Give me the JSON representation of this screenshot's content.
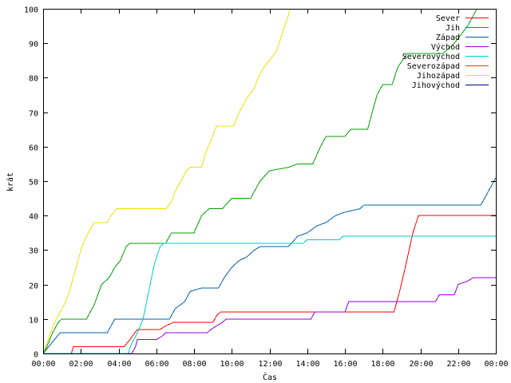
{
  "chart_data": {
    "type": "line",
    "title": "",
    "xlabel": "Čas",
    "ylabel": "krát",
    "xlim": [
      0,
      24
    ],
    "ylim": [
      0,
      100
    ],
    "grid": false,
    "legend_position": "top-right",
    "x_ticks": [
      {
        "value": 0,
        "label": "00:00"
      },
      {
        "value": 2,
        "label": "02:00"
      },
      {
        "value": 4,
        "label": "04:00"
      },
      {
        "value": 6,
        "label": "06:00"
      },
      {
        "value": 8,
        "label": "08:00"
      },
      {
        "value": 10,
        "label": "10:00"
      },
      {
        "value": 12,
        "label": "12:00"
      },
      {
        "value": 14,
        "label": "14:00"
      },
      {
        "value": 16,
        "label": "16:00"
      },
      {
        "value": 18,
        "label": "18:00"
      },
      {
        "value": 20,
        "label": "20:00"
      },
      {
        "value": 22,
        "label": "22:00"
      },
      {
        "value": 24,
        "label": "00:00"
      }
    ],
    "y_ticks": [
      {
        "value": 0,
        "label": "0"
      },
      {
        "value": 10,
        "label": "10"
      },
      {
        "value": 20,
        "label": "20"
      },
      {
        "value": 30,
        "label": "30"
      },
      {
        "value": 40,
        "label": "40"
      },
      {
        "value": 50,
        "label": "50"
      },
      {
        "value": 60,
        "label": "60"
      },
      {
        "value": 70,
        "label": "70"
      },
      {
        "value": 80,
        "label": "80"
      },
      {
        "value": 90,
        "label": "90"
      },
      {
        "value": 100,
        "label": "100"
      }
    ],
    "series": [
      {
        "name": "Sever",
        "color": "#ff0000",
        "points": [
          [
            0,
            0
          ],
          [
            1.5,
            0
          ],
          [
            1.6,
            2
          ],
          [
            4.3,
            2
          ],
          [
            4.6,
            4
          ],
          [
            5.0,
            7
          ],
          [
            6.2,
            7
          ],
          [
            6.5,
            8
          ],
          [
            6.9,
            9
          ],
          [
            9.0,
            9
          ],
          [
            9.2,
            11
          ],
          [
            9.4,
            12
          ],
          [
            18.6,
            12
          ],
          [
            18.9,
            18
          ],
          [
            19.2,
            25
          ],
          [
            19.6,
            35
          ],
          [
            19.9,
            40
          ],
          [
            24,
            40
          ]
        ]
      },
      {
        "name": "Jih",
        "color": "#00a000",
        "points": [
          [
            0,
            0
          ],
          [
            0.2,
            2
          ],
          [
            0.5,
            6
          ],
          [
            0.8,
            9
          ],
          [
            1.0,
            10
          ],
          [
            2.3,
            10
          ],
          [
            2.7,
            14
          ],
          [
            3.1,
            20
          ],
          [
            3.5,
            22
          ],
          [
            3.8,
            25
          ],
          [
            4.1,
            27
          ],
          [
            4.4,
            31
          ],
          [
            4.6,
            32
          ],
          [
            6.5,
            32
          ],
          [
            6.8,
            35
          ],
          [
            8.0,
            35
          ],
          [
            8.4,
            40
          ],
          [
            8.8,
            42
          ],
          [
            9.5,
            42
          ],
          [
            10.0,
            45
          ],
          [
            11.0,
            45
          ],
          [
            11.5,
            50
          ],
          [
            12.0,
            53
          ],
          [
            13.0,
            54
          ],
          [
            13.5,
            55
          ],
          [
            14.3,
            55
          ],
          [
            14.7,
            60
          ],
          [
            15.0,
            63
          ],
          [
            16.0,
            63
          ],
          [
            16.3,
            65
          ],
          [
            17.2,
            65
          ],
          [
            17.7,
            75
          ],
          [
            18.0,
            78
          ],
          [
            18.5,
            78
          ],
          [
            18.8,
            83
          ],
          [
            19.3,
            87
          ],
          [
            21.2,
            87
          ],
          [
            21.8,
            90
          ],
          [
            22.5,
            95
          ],
          [
            23.0,
            100
          ],
          [
            24,
            100
          ]
        ]
      },
      {
        "name": "Západ",
        "color": "#0060ad",
        "points": [
          [
            0,
            0
          ],
          [
            0.3,
            2
          ],
          [
            0.6,
            4
          ],
          [
            0.9,
            6
          ],
          [
            3.4,
            6
          ],
          [
            3.6,
            8
          ],
          [
            3.8,
            10
          ],
          [
            6.7,
            10
          ],
          [
            7.0,
            13
          ],
          [
            7.5,
            15
          ],
          [
            7.8,
            18
          ],
          [
            8.4,
            19
          ],
          [
            9.3,
            19
          ],
          [
            9.6,
            22
          ],
          [
            10.0,
            25
          ],
          [
            10.4,
            27
          ],
          [
            10.8,
            28
          ],
          [
            11.2,
            30
          ],
          [
            11.5,
            31
          ],
          [
            13.0,
            31
          ],
          [
            13.5,
            34
          ],
          [
            14.0,
            35
          ],
          [
            14.5,
            37
          ],
          [
            15.0,
            38
          ],
          [
            15.5,
            40
          ],
          [
            16.0,
            41
          ],
          [
            16.8,
            42
          ],
          [
            17.0,
            43
          ],
          [
            23.2,
            43
          ],
          [
            23.5,
            46
          ],
          [
            23.8,
            49
          ],
          [
            24,
            51
          ]
        ]
      },
      {
        "name": "Východ",
        "color": "#9400d3",
        "points": [
          [
            0,
            0
          ],
          [
            4.7,
            0
          ],
          [
            4.9,
            2
          ],
          [
            5.0,
            4
          ],
          [
            6.0,
            4
          ],
          [
            6.3,
            5
          ],
          [
            6.5,
            6
          ],
          [
            8.7,
            6
          ],
          [
            8.9,
            7
          ],
          [
            9.2,
            8
          ],
          [
            9.5,
            9
          ],
          [
            9.7,
            10
          ],
          [
            14.2,
            10
          ],
          [
            14.4,
            12
          ],
          [
            16.0,
            12
          ],
          [
            16.2,
            15
          ],
          [
            20.8,
            15
          ],
          [
            21.0,
            17
          ],
          [
            21.8,
            17
          ],
          [
            22.0,
            20
          ],
          [
            22.5,
            21
          ],
          [
            22.8,
            22
          ],
          [
            24,
            22
          ]
        ]
      },
      {
        "name": "Severovýchod",
        "color": "#00c8c8",
        "points": [
          [
            0,
            0
          ],
          [
            4.5,
            0
          ],
          [
            4.7,
            3
          ],
          [
            5.0,
            6
          ],
          [
            5.3,
            10
          ],
          [
            5.6,
            18
          ],
          [
            5.9,
            26
          ],
          [
            6.2,
            31
          ],
          [
            6.4,
            32
          ],
          [
            13.8,
            32
          ],
          [
            14.0,
            33
          ],
          [
            15.7,
            33
          ],
          [
            15.9,
            34
          ],
          [
            24,
            34
          ]
        ]
      },
      {
        "name": "Severozápad",
        "color": "#e04000",
        "points": []
      },
      {
        "name": "Jihozápad",
        "color": "#f0e000",
        "points": [
          [
            0,
            0
          ],
          [
            0.2,
            3
          ],
          [
            0.4,
            6
          ],
          [
            0.6,
            9
          ],
          [
            0.8,
            11
          ],
          [
            1.0,
            13
          ],
          [
            1.2,
            15
          ],
          [
            1.4,
            18
          ],
          [
            1.6,
            22
          ],
          [
            1.8,
            26
          ],
          [
            2.0,
            30
          ],
          [
            2.2,
            33
          ],
          [
            2.4,
            35
          ],
          [
            2.7,
            38
          ],
          [
            3.4,
            38
          ],
          [
            3.6,
            40
          ],
          [
            3.9,
            42
          ],
          [
            6.5,
            42
          ],
          [
            6.8,
            44
          ],
          [
            7.0,
            47
          ],
          [
            7.3,
            50
          ],
          [
            7.6,
            53
          ],
          [
            7.8,
            54
          ],
          [
            8.4,
            54
          ],
          [
            8.6,
            58
          ],
          [
            8.9,
            62
          ],
          [
            9.2,
            66
          ],
          [
            10.1,
            66
          ],
          [
            10.4,
            70
          ],
          [
            10.8,
            74
          ],
          [
            11.2,
            77
          ],
          [
            11.4,
            80
          ],
          [
            11.7,
            83
          ],
          [
            12.0,
            85
          ],
          [
            12.4,
            88
          ],
          [
            12.8,
            95
          ],
          [
            13.0,
            98
          ],
          [
            13.1,
            100
          ],
          [
            24,
            100
          ]
        ]
      },
      {
        "name": "Jihovýchod",
        "color": "#000080",
        "points": []
      }
    ]
  }
}
